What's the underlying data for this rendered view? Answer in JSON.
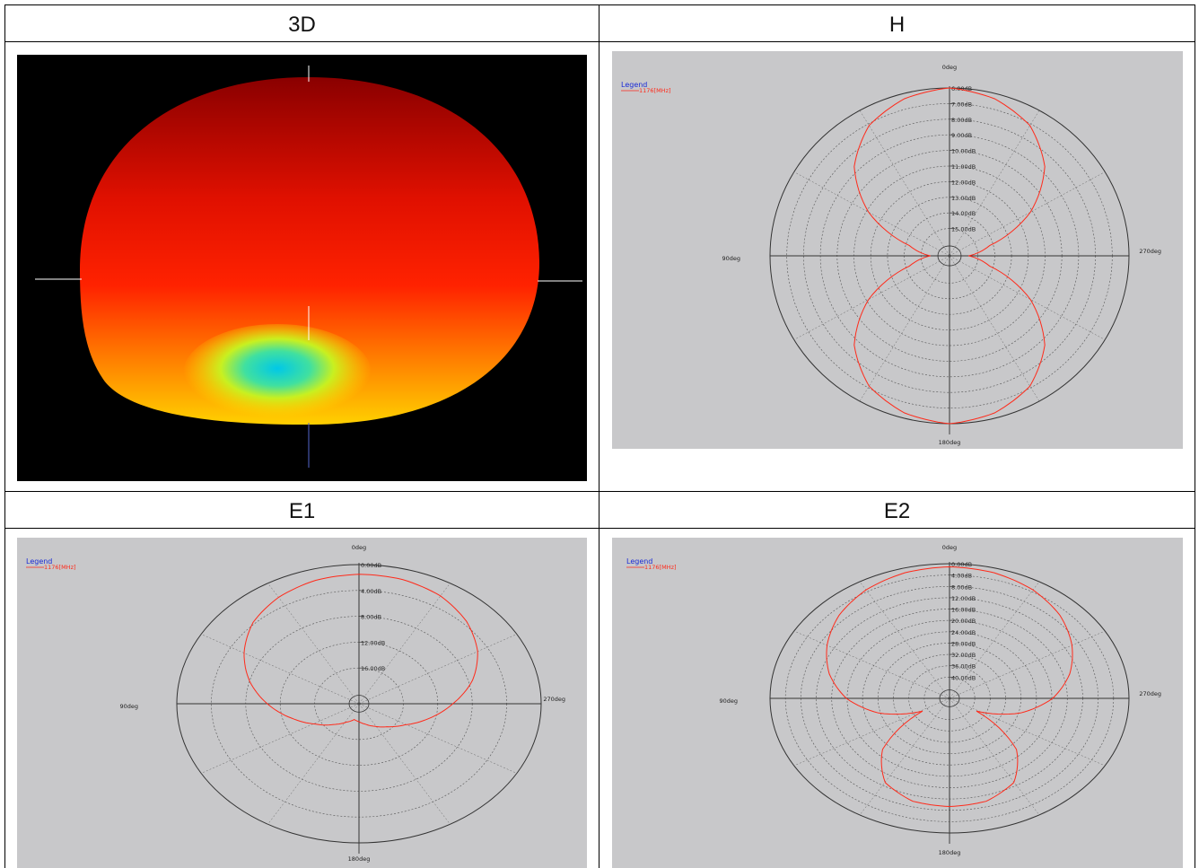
{
  "headers": {
    "tl": "3D",
    "tr": "H",
    "bl": "E1",
    "br": "E2"
  },
  "colors": {
    "plot_bg": "#c8c8ca",
    "pattern": "#ff2a1a",
    "legend_title": "#1a2bd6",
    "grid": "#333333"
  },
  "chart_data": [
    {
      "id": "H",
      "type": "polar-line",
      "legend_title": "Legend",
      "legend_entry": "1176[MHz]",
      "angle_labels": {
        "top": "0deg",
        "left": "90deg",
        "right": "270deg",
        "bottom": "180deg"
      },
      "radial_labels": [
        "6.00dB",
        "7.00dB",
        "8.00dB",
        "9.00dB",
        "10.00dB",
        "11.00dB",
        "12.00dB",
        "13.00dB",
        "14.00dB",
        "15.00dB"
      ],
      "rmax_db": -6,
      "rmin_db": -15,
      "series": [
        {
          "name": "1176[MHz]",
          "angles_deg": [
            0,
            15,
            30,
            45,
            60,
            75,
            90,
            105,
            120,
            135,
            150,
            165,
            180,
            195,
            210,
            225,
            240,
            255,
            270,
            285,
            300,
            315,
            330,
            345
          ],
          "gain_db": [
            -6.0,
            -6.3,
            -7.0,
            -8.4,
            -10.6,
            -13.4,
            -14.6,
            -13.4,
            -10.6,
            -8.4,
            -7.0,
            -6.3,
            -6.0,
            -6.3,
            -7.0,
            -8.4,
            -10.6,
            -13.4,
            -14.6,
            -13.4,
            -10.6,
            -8.4,
            -7.0,
            -6.3
          ]
        }
      ]
    },
    {
      "id": "E1",
      "type": "polar-line",
      "legend_title": "Legend",
      "legend_entry": "1176[MHz]",
      "angle_labels": {
        "top": "0deg",
        "left": "90deg",
        "right": "270deg",
        "bottom": "180deg"
      },
      "radial_labels": [
        "0.00dB",
        "4.00dB",
        "8.00dB",
        "12.00dB",
        "16.00dB"
      ],
      "rmax_db": 0,
      "rmin_db": -16,
      "series": [
        {
          "name": "1176[MHz]",
          "angles_deg": [
            0,
            15,
            30,
            45,
            60,
            75,
            90,
            105,
            120,
            135,
            150,
            165,
            180,
            195,
            210,
            225,
            240,
            255,
            270,
            285,
            300,
            315,
            330,
            345
          ],
          "gain_db": [
            -1.2,
            -1.4,
            -2.0,
            -3.0,
            -4.6,
            -6.4,
            -8.4,
            -10.4,
            -12.2,
            -13.6,
            -14.6,
            -15.2,
            -15.0,
            -14.6,
            -14.0,
            -13.2,
            -12.0,
            -10.2,
            -8.2,
            -6.0,
            -4.2,
            -2.8,
            -1.8,
            -1.3
          ]
        }
      ]
    },
    {
      "id": "E2",
      "type": "polar-line",
      "legend_title": "Legend",
      "legend_entry": "1176[MHz]",
      "angle_labels": {
        "top": "0deg",
        "left": "90deg",
        "right": "270deg",
        "bottom": "180deg"
      },
      "radial_labels": [
        "0.00dB",
        "4.00dB",
        "8.00dB",
        "12.00dB",
        "16.00dB",
        "20.00dB",
        "24.00dB",
        "28.00dB",
        "32.00dB",
        "36.00dB",
        "40.00dB"
      ],
      "rmax_db": 0,
      "rmin_db": -40,
      "series": [
        {
          "name": "1176[MHz]",
          "angles_deg": [
            0,
            15,
            30,
            45,
            60,
            75,
            90,
            105,
            120,
            135,
            150,
            165,
            180,
            195,
            210,
            225,
            240,
            255,
            270,
            285,
            300,
            315,
            330,
            345
          ],
          "gain_db": [
            -1.0,
            -1.5,
            -3.0,
            -5.5,
            -9.0,
            -13.0,
            -18.0,
            -25.0,
            -35.0,
            -20.0,
            -12.0,
            -9.0,
            -8.5,
            -9.0,
            -12.0,
            -20.0,
            -35.0,
            -25.0,
            -18.0,
            -13.0,
            -9.0,
            -5.5,
            -3.0,
            -1.5
          ]
        }
      ]
    }
  ]
}
